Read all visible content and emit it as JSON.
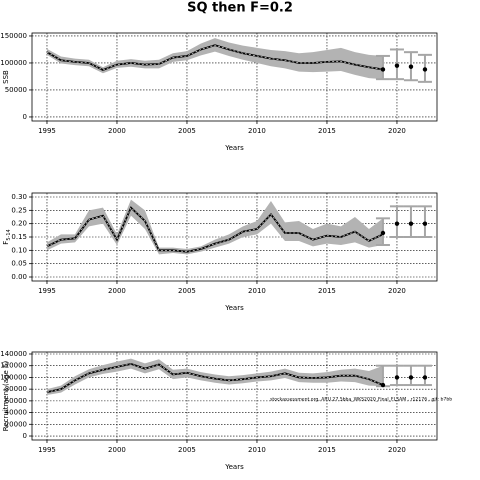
{
  "chart_data": [
    {
      "type": "line",
      "title": "SQ then F=0.2",
      "ylabel": "SSB",
      "xlabel": "Years",
      "x": [
        1995,
        1996,
        1997,
        1998,
        1999,
        2000,
        2001,
        2002,
        2003,
        2004,
        2005,
        2006,
        2007,
        2008,
        2009,
        2010,
        2011,
        2012,
        2013,
        2014,
        2015,
        2016,
        2017,
        2018,
        2019
      ],
      "values": [
        120000,
        105000,
        102000,
        100000,
        87000,
        97000,
        100000,
        97000,
        98000,
        110000,
        113000,
        125000,
        133000,
        125000,
        118000,
        113000,
        108000,
        105000,
        100000,
        100000,
        102000,
        103000,
        97000,
        92000,
        88000
      ],
      "upper": [
        126000,
        112000,
        108000,
        106000,
        92000,
        104000,
        107000,
        104000,
        106000,
        118000,
        122000,
        136000,
        146000,
        138000,
        132000,
        128000,
        124000,
        122000,
        118000,
        120000,
        124000,
        128000,
        120000,
        115000,
        113000
      ],
      "lower": [
        115000,
        99000,
        96000,
        94000,
        81000,
        91000,
        93000,
        90000,
        90000,
        102000,
        105000,
        114000,
        121000,
        113000,
        106000,
        100000,
        94000,
        90000,
        84000,
        83000,
        84000,
        85000,
        78000,
        72000,
        70000
      ],
      "projection": {
        "x": [
          2019,
          2020,
          2021,
          2022
        ],
        "values": [
          88000,
          95000,
          93000,
          88000
        ],
        "lower": [
          70000,
          70000,
          68000,
          65000
        ],
        "upper": [
          113000,
          125000,
          120000,
          115000
        ]
      },
      "xlim": [
        1993.93,
        2022.86
      ],
      "xticks": [
        1995,
        2000,
        2005,
        2010,
        2015,
        2020
      ],
      "ylim": [
        -7500,
        155500
      ],
      "yticks": [
        0,
        50000,
        100000,
        150000
      ],
      "grid": true,
      "line_color": "#000000",
      "band_color": "#b3b3b3",
      "bar_color": "#a6a6a6"
    },
    {
      "type": "line",
      "ylabel": "F",
      "ylabel_sub": "5-14",
      "xlabel": "Years",
      "x": [
        1995,
        1996,
        1997,
        1998,
        1999,
        2000,
        2001,
        2002,
        2003,
        2004,
        2005,
        2006,
        2007,
        2008,
        2009,
        2010,
        2011,
        2012,
        2013,
        2014,
        2015,
        2016,
        2017,
        2018,
        2019
      ],
      "values": [
        0.115,
        0.14,
        0.145,
        0.215,
        0.23,
        0.14,
        0.26,
        0.21,
        0.1,
        0.1,
        0.095,
        0.105,
        0.125,
        0.14,
        0.17,
        0.18,
        0.235,
        0.165,
        0.165,
        0.14,
        0.155,
        0.15,
        0.17,
        0.135,
        0.16
      ],
      "upper": [
        0.13,
        0.16,
        0.16,
        0.25,
        0.26,
        0.16,
        0.29,
        0.25,
        0.11,
        0.11,
        0.105,
        0.115,
        0.14,
        0.16,
        0.19,
        0.21,
        0.285,
        0.205,
        0.21,
        0.18,
        0.2,
        0.19,
        0.225,
        0.18,
        0.22
      ],
      "lower": [
        0.1,
        0.125,
        0.13,
        0.19,
        0.2,
        0.12,
        0.23,
        0.18,
        0.085,
        0.09,
        0.085,
        0.095,
        0.11,
        0.125,
        0.15,
        0.16,
        0.2,
        0.135,
        0.135,
        0.115,
        0.125,
        0.12,
        0.13,
        0.11,
        0.12
      ],
      "projection": {
        "x": [
          2019,
          2020,
          2021,
          2022
        ],
        "values": [
          0.165,
          0.2,
          0.2,
          0.2
        ],
        "lower": [
          0.12,
          0.15,
          0.15,
          0.15
        ],
        "upper": [
          0.22,
          0.265,
          0.265,
          0.265
        ]
      },
      "xlim": [
        1993.93,
        2022.86
      ],
      "xticks": [
        1995,
        2000,
        2005,
        2010,
        2015,
        2020
      ],
      "ylim": [
        -0.015,
        0.315
      ],
      "yticks": [
        {
          "value": 0,
          "label": "0.00"
        },
        0.05,
        {
          "value": 0.1,
          "label": "0.10"
        },
        0.15,
        {
          "value": 0.2,
          "label": "0.20"
        },
        0.25,
        {
          "value": 0.3,
          "label": "0.30"
        }
      ],
      "grid": true,
      "line_color": "#000000",
      "band_color": "#b3b3b3",
      "bar_color": "#a6a6a6"
    },
    {
      "type": "line",
      "ylabel": "Recruitment (age 5)",
      "xlabel": "Years",
      "annotation": "stockassessment.org, ARU.27.5bba_WKS2020_Final_FLSAM , r12176 , git: b7bb",
      "x": [
        1995,
        1996,
        1997,
        1998,
        1999,
        2000,
        2001,
        2002,
        2003,
        2004,
        2005,
        2006,
        2007,
        2008,
        2009,
        2010,
        2011,
        2012,
        2013,
        2014,
        2015,
        2016,
        2017,
        2018,
        2019
      ],
      "values": [
        75000,
        80000,
        95000,
        107000,
        113000,
        118000,
        123000,
        115000,
        122000,
        105000,
        108000,
        102000,
        98000,
        95000,
        97000,
        100000,
        102000,
        107000,
        100000,
        99000,
        100000,
        103000,
        103000,
        97000,
        87000
      ],
      "upper": [
        80000,
        86000,
        102000,
        114000,
        121000,
        127000,
        132000,
        124000,
        131000,
        113000,
        115000,
        109000,
        105000,
        102000,
        104000,
        107000,
        110000,
        115000,
        108000,
        107000,
        109000,
        113000,
        115000,
        111000,
        120000
      ],
      "lower": [
        70000,
        74000,
        88000,
        100000,
        106000,
        110000,
        115000,
        107000,
        114000,
        97000,
        100000,
        95000,
        91000,
        88000,
        90000,
        93000,
        95000,
        99000,
        92000,
        91000,
        91000,
        93000,
        92000,
        86000,
        85000
      ],
      "projection": {
        "x": [
          2019,
          2020,
          2021,
          2022
        ],
        "values": [
          87000,
          100000,
          100000,
          100000
        ],
        "lower": [
          85000,
          87000,
          87000,
          87000
        ],
        "upper": [
          120000,
          120000,
          120000,
          120000
        ]
      },
      "xlim": [
        1993.93,
        2022.86
      ],
      "xticks": [
        1995,
        2000,
        2005,
        2010,
        2015,
        2020
      ],
      "ylim": [
        -6800,
        143400
      ],
      "yticks": [
        0,
        20000,
        40000,
        60000,
        80000,
        100000,
        120000,
        140000
      ],
      "grid": true,
      "line_color": "#000000",
      "band_color": "#b3b3b3",
      "bar_color": "#a6a6a6"
    }
  ]
}
